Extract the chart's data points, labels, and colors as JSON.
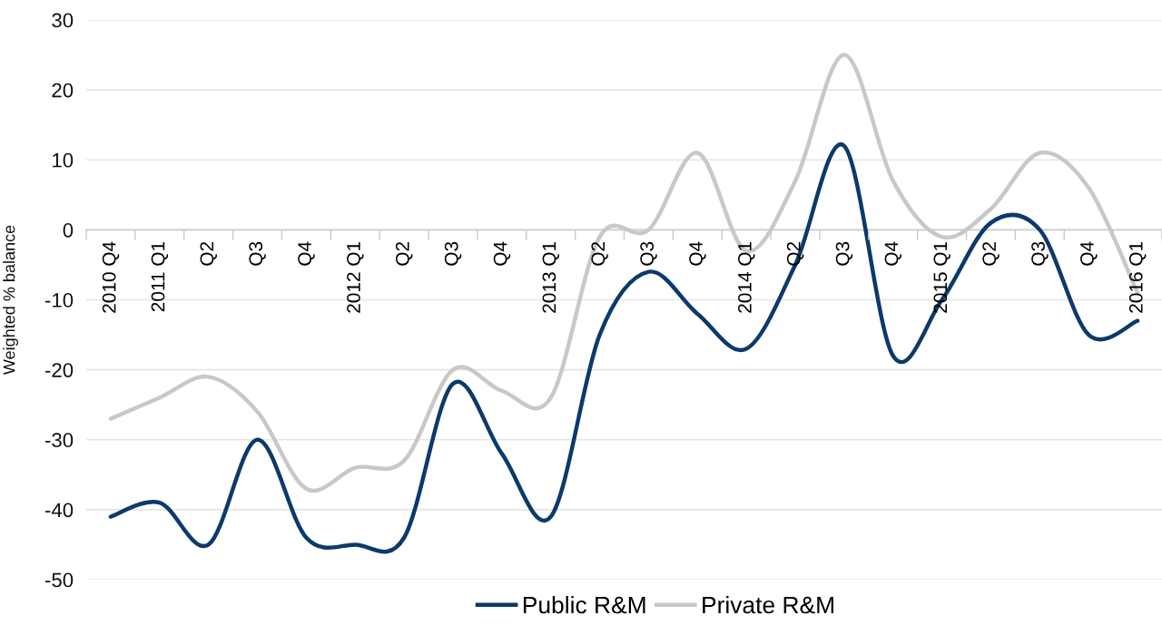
{
  "chart_data": {
    "type": "line",
    "ylabel": "Weighted % balance",
    "categories": [
      "2010 Q4",
      "2011 Q1",
      "Q2",
      "Q3",
      "Q4",
      "2012 Q1",
      "Q2",
      "Q3",
      "Q4",
      "2013 Q1",
      "Q2",
      "Q3",
      "Q4",
      "2014 Q1",
      "Q2",
      "Q3",
      "Q4",
      "2015 Q1",
      "Q2",
      "Q3",
      "Q4",
      "2016 Q1"
    ],
    "series": [
      {
        "name": "Public R&M",
        "color": "#0b3a6b",
        "values": [
          -41,
          -39,
          -45,
          -30,
          -44,
          -45,
          -44,
          -22,
          -32,
          -41,
          -15,
          -6,
          -12,
          -17,
          -5,
          12,
          -18,
          -10,
          1,
          0,
          -15,
          -13
        ]
      },
      {
        "name": "Private R&M",
        "color": "#c8c8c8",
        "values": [
          -27,
          -24,
          -21,
          -26,
          -37,
          -34,
          -33,
          -20,
          -23,
          -24,
          -1,
          0,
          11,
          -3,
          7,
          25,
          7,
          -1,
          3,
          11,
          6,
          -9
        ]
      }
    ],
    "ylim": [
      -50,
      30
    ],
    "yticks": [
      -50,
      -40,
      -30,
      -20,
      -10,
      0,
      10,
      20,
      30
    ],
    "grid": "y",
    "legend": "bottom"
  }
}
